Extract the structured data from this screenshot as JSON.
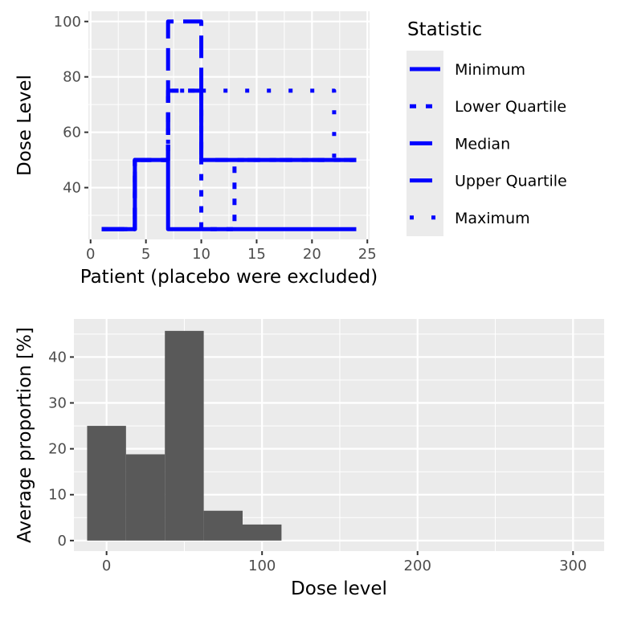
{
  "chart_data": [
    {
      "type": "line",
      "step": true,
      "xlabel": "Patient (placebo were excluded)",
      "ylabel": "Dose Level",
      "xlim": [
        -0.2,
        25.2
      ],
      "ylim": [
        21.3,
        103.7
      ],
      "xticks": [
        0,
        5,
        10,
        15,
        20,
        25
      ],
      "yticks": [
        40,
        60,
        80,
        100
      ],
      "grid": true,
      "color": "#0000FF",
      "legend": {
        "title": "Statistic",
        "placement": "right"
      },
      "x": [
        1,
        2,
        3,
        4,
        5,
        6,
        7,
        8,
        9,
        10,
        11,
        12,
        13,
        14,
        15,
        16,
        17,
        18,
        19,
        20,
        21,
        22,
        23,
        24
      ],
      "series": [
        {
          "name": "Minimum",
          "linetype": "solid",
          "values": [
            25,
            25,
            25,
            50,
            50,
            50,
            25,
            25,
            25,
            25,
            25,
            25,
            25,
            25,
            25,
            25,
            25,
            25,
            25,
            25,
            25,
            25,
            25,
            25
          ]
        },
        {
          "name": "Lower Quartile",
          "linetype": "dashed",
          "values": [
            25,
            25,
            25,
            50,
            50,
            50,
            75,
            75,
            75,
            25,
            25,
            25,
            50,
            50,
            50,
            50,
            50,
            50,
            50,
            50,
            50,
            50,
            50,
            50
          ]
        },
        {
          "name": "Median",
          "linetype": "longdash",
          "values": [
            25,
            25,
            25,
            50,
            50,
            50,
            75,
            75,
            75,
            50,
            50,
            50,
            50,
            50,
            50,
            50,
            50,
            50,
            50,
            50,
            50,
            50,
            50,
            50
          ]
        },
        {
          "name": "Upper Quartile",
          "linetype": "longdash",
          "values": [
            25,
            25,
            25,
            50,
            50,
            50,
            100,
            100,
            100,
            50,
            50,
            50,
            50,
            50,
            50,
            50,
            50,
            50,
            50,
            50,
            50,
            50,
            50,
            50
          ]
        },
        {
          "name": "Maximum",
          "linetype": "dotted",
          "values": [
            25,
            25,
            25,
            50,
            50,
            50,
            75,
            75,
            75,
            75,
            75,
            75,
            75,
            75,
            75,
            75,
            75,
            75,
            75,
            75,
            75,
            50,
            50,
            50
          ]
        }
      ]
    },
    {
      "type": "bar",
      "xlabel": "Dose level",
      "ylabel": "Average proportion [%]",
      "x": [
        0,
        25,
        50,
        75,
        100
      ],
      "values": [
        25,
        18.8,
        45.7,
        6.5,
        3.5
      ],
      "xlim": [
        -21,
        320
      ],
      "ylim": [
        -2.3,
        48.3
      ],
      "xticks": [
        0,
        100,
        200,
        300
      ],
      "yticks": [
        0,
        10,
        20,
        30,
        40
      ],
      "grid": true,
      "color": "#595959"
    }
  ]
}
